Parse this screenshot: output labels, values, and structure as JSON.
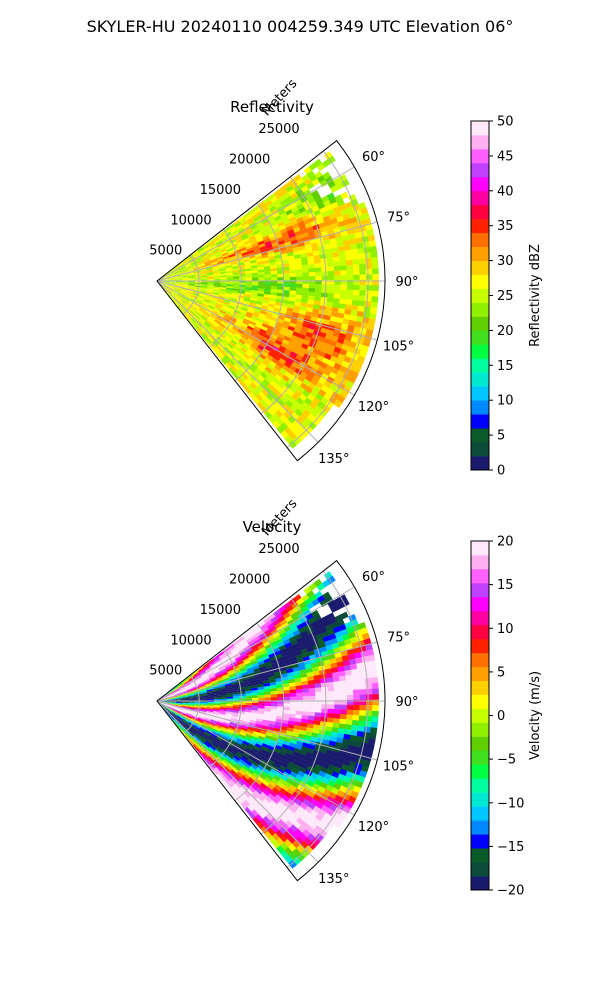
{
  "figure_title": "SKYLER-HU  20240110  004259.349 UTC Elevation 06°",
  "range_unit_label": "Meters",
  "chart_data": [
    {
      "type": "heatmap",
      "projection": "polar-sector",
      "title": "Reflectivity",
      "azimuth_range_deg": [
        52,
        142
      ],
      "azimuth_ticks": [
        "60°",
        "75°",
        "90°",
        "105°",
        "120°",
        "135°"
      ],
      "azimuth_tick_values": [
        60,
        75,
        90,
        105,
        120,
        135
      ],
      "range_max_m": 27000,
      "range_ticks": [
        "5000",
        "10000",
        "15000",
        "20000",
        "25000"
      ],
      "range_tick_values": [
        5000,
        10000,
        15000,
        20000,
        25000
      ],
      "grid": true,
      "colorbar": {
        "label": "Reflectivity dBZ",
        "range": [
          0,
          50
        ],
        "tick_labels": [
          "0",
          "5",
          "10",
          "15",
          "20",
          "25",
          "30",
          "35",
          "40",
          "45",
          "50"
        ],
        "tick_values": [
          0,
          5,
          10,
          15,
          20,
          25,
          30,
          35,
          40,
          45,
          50
        ],
        "colors": [
          "#1a1a6e",
          "#0c4a3a",
          "#0a5a2a",
          "#0000ff",
          "#0088ff",
          "#00c8ff",
          "#00e8d0",
          "#00ffa0",
          "#00ff40",
          "#40e020",
          "#60d000",
          "#90f000",
          "#c8ff00",
          "#ffff00",
          "#ffd000",
          "#ffa000",
          "#ff7000",
          "#ff2000",
          "#ff0040",
          "#ff00a0",
          "#ff00ff",
          "#c040ff",
          "#ff60ff",
          "#ffb0f0",
          "#ffe8fa"
        ]
      }
    },
    {
      "type": "heatmap",
      "projection": "polar-sector",
      "title": "Velocity",
      "azimuth_range_deg": [
        52,
        142
      ],
      "azimuth_ticks": [
        "60°",
        "75°",
        "90°",
        "105°",
        "120°",
        "135°"
      ],
      "azimuth_tick_values": [
        60,
        75,
        90,
        105,
        120,
        135
      ],
      "range_max_m": 27000,
      "range_ticks": [
        "5000",
        "10000",
        "15000",
        "20000",
        "25000"
      ],
      "range_tick_values": [
        5000,
        10000,
        15000,
        20000,
        25000
      ],
      "grid": true,
      "colorbar": {
        "label": "Velocity (m/s)",
        "range": [
          -20,
          20
        ],
        "tick_labels": [
          "−20",
          "−15",
          "−10",
          "−5",
          "0",
          "5",
          "10",
          "15",
          "20"
        ],
        "tick_values": [
          -20,
          -15,
          -10,
          -5,
          0,
          5,
          10,
          15,
          20
        ],
        "colors": [
          "#1a1a6e",
          "#0c4a3a",
          "#0a5a2a",
          "#0000ff",
          "#0088ff",
          "#00c8ff",
          "#00e8d0",
          "#00ffa0",
          "#00ff40",
          "#40e020",
          "#60d000",
          "#90f000",
          "#c8ff00",
          "#ffff00",
          "#ffd000",
          "#ffa000",
          "#ff7000",
          "#ff2000",
          "#ff0040",
          "#ff00a0",
          "#ff00ff",
          "#c040ff",
          "#ff60ff",
          "#ffb0f0",
          "#ffe8fa"
        ]
      }
    }
  ]
}
